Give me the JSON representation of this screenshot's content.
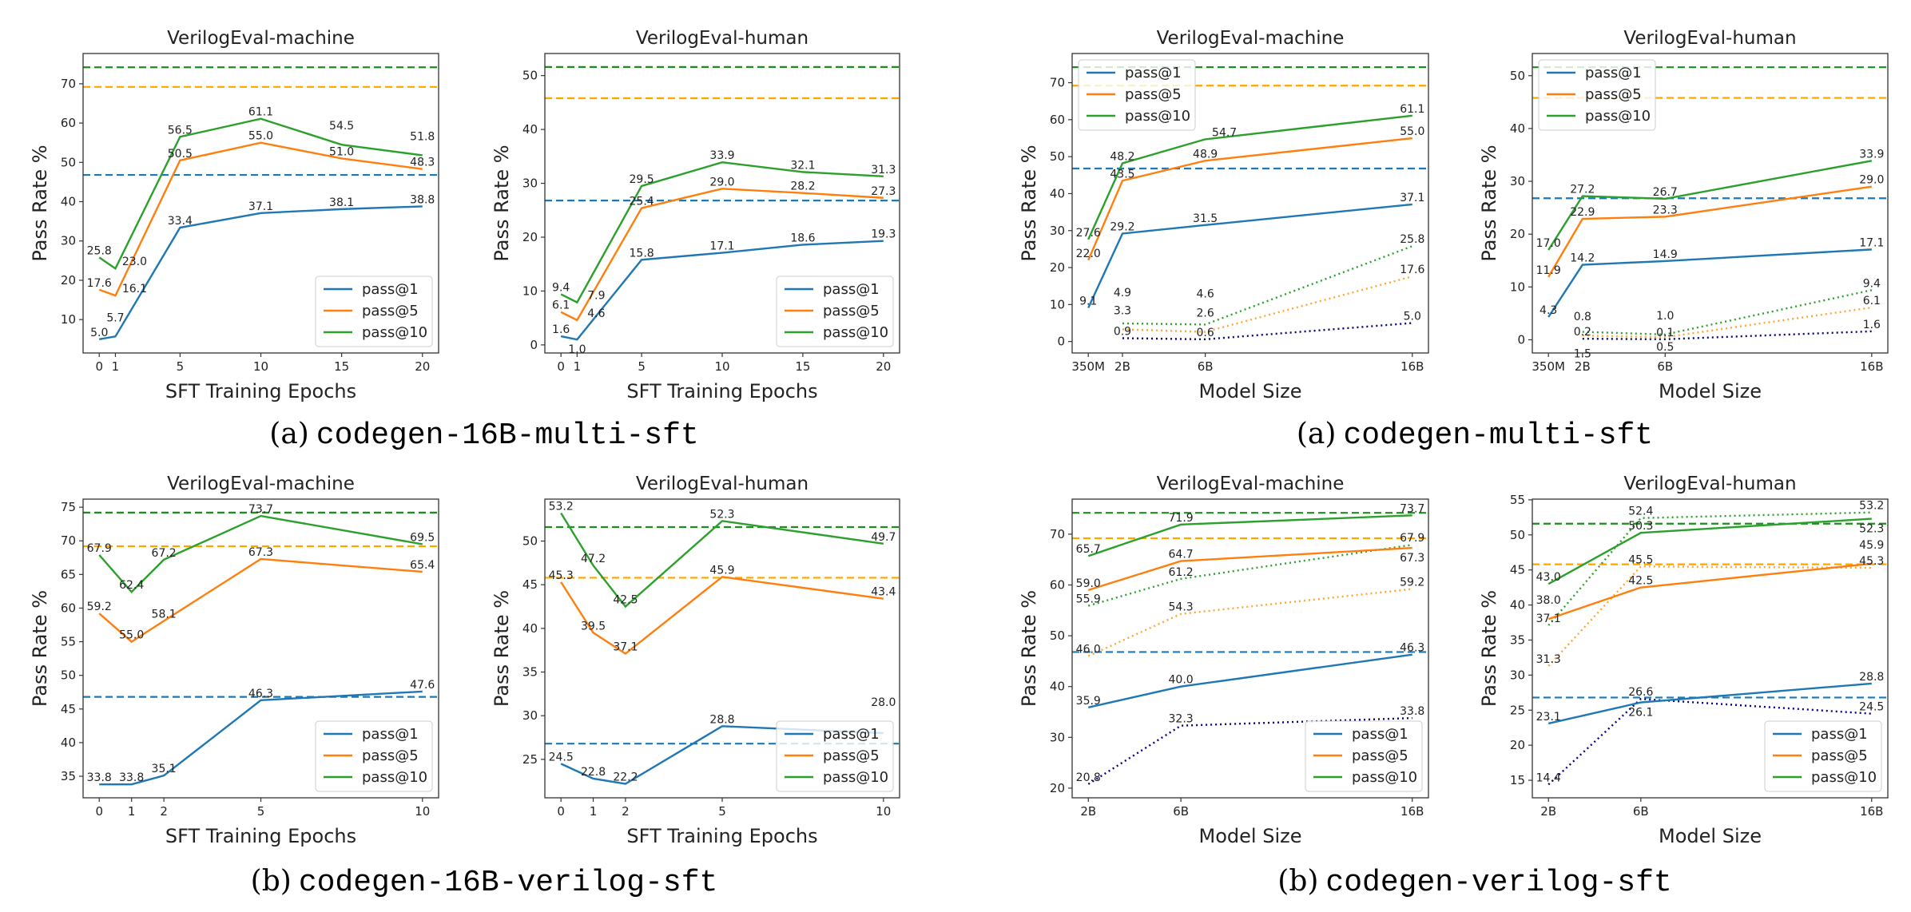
{
  "colors": {
    "pass1": "#1f77b4",
    "pass5": "#ff7f0e",
    "pass10": "#2ca02c",
    "dotted_pass1": "#000080",
    "dotted_pass5": "#ffa533",
    "dotted_pass10": "#2ca02c",
    "ref_pass1": "#1f77b4",
    "ref_pass5": "#ffa500",
    "ref_pass10": "#1e8c1e"
  },
  "captions": [
    {
      "label": "(a)",
      "code": "codegen-16B-multi-sft"
    },
    {
      "label": "(a)",
      "code": "codegen-multi-sft"
    },
    {
      "label": "(b)",
      "code": "codegen-16B-verilog-sft"
    },
    {
      "label": "(b)",
      "code": "codegen-verilog-sft"
    }
  ],
  "chart_data": [
    {
      "type": "line",
      "title": "VerilogEval-machine",
      "xlabel": "SFT Training Epochs",
      "ylabel": "Pass Rate %",
      "x": [
        0,
        1,
        5,
        10,
        15,
        20
      ],
      "xticks": [
        0,
        1,
        5,
        10,
        15,
        20
      ],
      "xticklabels": [
        "0",
        "1",
        "5",
        "10",
        "15",
        "20"
      ],
      "xlim": [
        -1,
        21
      ],
      "ylim": [
        1.5,
        77.7
      ],
      "yticks": [
        10,
        20,
        30,
        40,
        50,
        60,
        70
      ],
      "grid": false,
      "legend": "lower-right",
      "series": [
        {
          "name": "pass@1",
          "values": [
            5.0,
            5.7,
            33.4,
            37.1,
            38.1,
            38.8
          ]
        },
        {
          "name": "pass@5",
          "values": [
            17.6,
            16.1,
            50.5,
            55.0,
            51.0,
            48.3
          ]
        },
        {
          "name": "pass@10",
          "values": [
            25.8,
            23.0,
            56.5,
            61.1,
            54.5,
            51.8
          ]
        }
      ],
      "reference_lines": [
        46.8,
        69.2,
        74.2
      ]
    },
    {
      "type": "line",
      "title": "VerilogEval-human",
      "xlabel": "SFT Training Epochs",
      "ylabel": "Pass Rate %",
      "x": [
        0,
        1,
        5,
        10,
        15,
        20
      ],
      "xticks": [
        0,
        1,
        5,
        10,
        15,
        20
      ],
      "xticklabels": [
        "0",
        "1",
        "5",
        "10",
        "15",
        "20"
      ],
      "xlim": [
        -1,
        21
      ],
      "ylim": [
        -1.5,
        54.1
      ],
      "yticks": [
        0,
        10,
        20,
        30,
        40,
        50
      ],
      "grid": false,
      "legend": "lower-right",
      "series": [
        {
          "name": "pass@1",
          "values": [
            1.6,
            1.0,
            15.8,
            17.1,
            18.6,
            19.3
          ]
        },
        {
          "name": "pass@5",
          "values": [
            6.1,
            4.6,
            25.4,
            29.0,
            28.2,
            27.3
          ]
        },
        {
          "name": "pass@10",
          "values": [
            9.4,
            7.9,
            29.5,
            33.9,
            32.1,
            31.3
          ]
        }
      ],
      "reference_lines": [
        26.8,
        45.8,
        51.6
      ]
    },
    {
      "type": "line",
      "title": "VerilogEval-machine",
      "xlabel": "Model Size",
      "ylabel": "Pass Rate %",
      "x": [
        0.35,
        2,
        6,
        16
      ],
      "xticks": [
        0.35,
        2,
        6,
        16
      ],
      "xticklabels": [
        "350M",
        "2B",
        "6B",
        "16B"
      ],
      "xlim": [
        -0.43,
        16.78
      ],
      "ylim": [
        -3.1,
        77.9
      ],
      "yticks": [
        0,
        10,
        20,
        30,
        40,
        50,
        60,
        70
      ],
      "grid": false,
      "legend": "upper-left",
      "series": [
        {
          "name": "pass@1",
          "values": [
            9.1,
            29.2,
            31.5,
            37.1
          ]
        },
        {
          "name": "pass@5",
          "values": [
            22.0,
            43.5,
            48.9,
            55.0
          ]
        },
        {
          "name": "pass@10",
          "values": [
            27.6,
            48.2,
            54.7,
            61.1
          ]
        }
      ],
      "dotted_x": [
        2,
        6,
        16
      ],
      "dotted_series": [
        {
          "values": [
            0.9,
            0.6,
            5.0
          ]
        },
        {
          "values": [
            3.3,
            2.6,
            17.6
          ]
        },
        {
          "values": [
            4.9,
            4.6,
            25.8
          ]
        }
      ],
      "reference_lines": [
        46.8,
        69.2,
        74.2
      ]
    },
    {
      "type": "line",
      "title": "VerilogEval-human",
      "xlabel": "Model Size",
      "ylabel": "Pass Rate %",
      "x": [
        0.35,
        2,
        6,
        16
      ],
      "xticks": [
        0.35,
        2,
        6,
        16
      ],
      "xticklabels": [
        "350M",
        "2B",
        "6B",
        "16B"
      ],
      "xlim": [
        -0.43,
        16.78
      ],
      "ylim": [
        -2.5,
        54.2
      ],
      "yticks": [
        0,
        10,
        20,
        30,
        40,
        50
      ],
      "grid": false,
      "legend": "upper-left",
      "series": [
        {
          "name": "pass@1",
          "values": [
            4.3,
            14.2,
            14.9,
            17.1
          ]
        },
        {
          "name": "pass@5",
          "values": [
            11.9,
            22.9,
            23.3,
            29.0
          ]
        },
        {
          "name": "pass@10",
          "values": [
            17.0,
            27.2,
            26.7,
            33.9
          ]
        }
      ],
      "dotted_x": [
        2,
        6,
        16
      ],
      "dotted_series": [
        {
          "values": [
            0.2,
            0.1,
            1.6
          ]
        },
        {
          "values": [
            0.8,
            0.5,
            6.1
          ]
        },
        {
          "values": [
            1.5,
            1.0,
            9.4
          ]
        }
      ],
      "reference_lines": [
        26.8,
        45.8,
        51.6
      ]
    },
    {
      "type": "line",
      "title": "VerilogEval-machine",
      "xlabel": "SFT Training Epochs",
      "ylabel": "Pass Rate %",
      "x": [
        0,
        1,
        2,
        5,
        10
      ],
      "xticks": [
        0,
        1,
        2,
        5,
        10
      ],
      "xticklabels": [
        "0",
        "1",
        "2",
        "5",
        "10"
      ],
      "xlim": [
        -0.5,
        10.5
      ],
      "ylim": [
        31.8,
        76.2
      ],
      "yticks": [
        35,
        40,
        45,
        50,
        55,
        60,
        65,
        70,
        75
      ],
      "grid": false,
      "legend": "lower-right",
      "series": [
        {
          "name": "pass@1",
          "values": [
            33.8,
            33.8,
            35.1,
            46.3,
            47.6
          ]
        },
        {
          "name": "pass@5",
          "values": [
            59.2,
            55.0,
            58.1,
            67.3,
            65.4
          ]
        },
        {
          "name": "pass@10",
          "values": [
            67.9,
            62.4,
            67.2,
            73.7,
            69.5
          ]
        }
      ],
      "reference_lines": [
        46.8,
        69.2,
        74.2
      ]
    },
    {
      "type": "line",
      "title": "VerilogEval-human",
      "xlabel": "SFT Training Epochs",
      "ylabel": "Pass Rate %",
      "x": [
        0,
        1,
        2,
        5,
        10
      ],
      "xticks": [
        0,
        1,
        2,
        5,
        10
      ],
      "xticklabels": [
        "0",
        "1",
        "2",
        "5",
        "10"
      ],
      "xlim": [
        -0.5,
        10.5
      ],
      "ylim": [
        20.6,
        54.8
      ],
      "yticks": [
        25,
        30,
        35,
        40,
        45,
        50
      ],
      "grid": false,
      "legend": "lower-right",
      "series": [
        {
          "name": "pass@1",
          "values": [
            24.5,
            22.8,
            22.2,
            28.8,
            28.0
          ]
        },
        {
          "name": "pass@5",
          "values": [
            45.3,
            39.5,
            37.1,
            45.9,
            43.4
          ]
        },
        {
          "name": "pass@10",
          "values": [
            53.2,
            47.2,
            42.5,
            52.3,
            49.7
          ]
        }
      ],
      "reference_lines": [
        26.8,
        45.8,
        51.6
      ]
    },
    {
      "type": "line",
      "title": "VerilogEval-machine",
      "xlabel": "Model Size",
      "ylabel": "Pass Rate %",
      "x": [
        2,
        6,
        16
      ],
      "xticks": [
        2,
        6,
        16
      ],
      "xticklabels": [
        "2B",
        "6B",
        "16B"
      ],
      "xlim": [
        1.3,
        16.7
      ],
      "ylim": [
        18.1,
        76.9
      ],
      "yticks": [
        20,
        30,
        40,
        50,
        60,
        70
      ],
      "grid": false,
      "legend": "lower-right",
      "series": [
        {
          "name": "pass@1",
          "values": [
            35.9,
            40.0,
            46.3
          ]
        },
        {
          "name": "pass@5",
          "values": [
            59.0,
            64.7,
            67.3
          ]
        },
        {
          "name": "pass@10",
          "values": [
            65.7,
            71.9,
            73.7
          ]
        }
      ],
      "dotted_x": [
        2,
        6,
        16
      ],
      "dotted_series": [
        {
          "values": [
            20.8,
            32.3,
            33.8
          ]
        },
        {
          "values": [
            46.0,
            54.3,
            59.2
          ]
        },
        {
          "values": [
            55.9,
            61.2,
            67.9
          ]
        }
      ],
      "reference_lines": [
        46.8,
        69.2,
        74.2
      ]
    },
    {
      "type": "line",
      "title": "VerilogEval-human",
      "xlabel": "Model Size",
      "ylabel": "Pass Rate %",
      "x": [
        2,
        6,
        16
      ],
      "xticks": [
        2,
        6,
        16
      ],
      "xticklabels": [
        "2B",
        "6B",
        "16B"
      ],
      "xlim": [
        1.3,
        16.7
      ],
      "ylim": [
        12.5,
        55.1
      ],
      "yticks": [
        15,
        20,
        25,
        30,
        35,
        40,
        45,
        50,
        55
      ],
      "grid": false,
      "legend": "lower-right",
      "series": [
        {
          "name": "pass@1",
          "values": [
            23.1,
            26.1,
            28.8
          ]
        },
        {
          "name": "pass@5",
          "values": [
            38.0,
            42.5,
            45.9
          ]
        },
        {
          "name": "pass@10",
          "values": [
            43.0,
            50.3,
            52.3
          ]
        }
      ],
      "dotted_x": [
        2,
        6,
        16
      ],
      "dotted_series": [
        {
          "values": [
            14.4,
            26.6,
            24.5
          ]
        },
        {
          "values": [
            31.3,
            45.5,
            45.3
          ]
        },
        {
          "values": [
            37.1,
            52.4,
            53.2
          ]
        }
      ],
      "reference_lines": [
        26.8,
        45.8,
        51.6
      ]
    }
  ]
}
